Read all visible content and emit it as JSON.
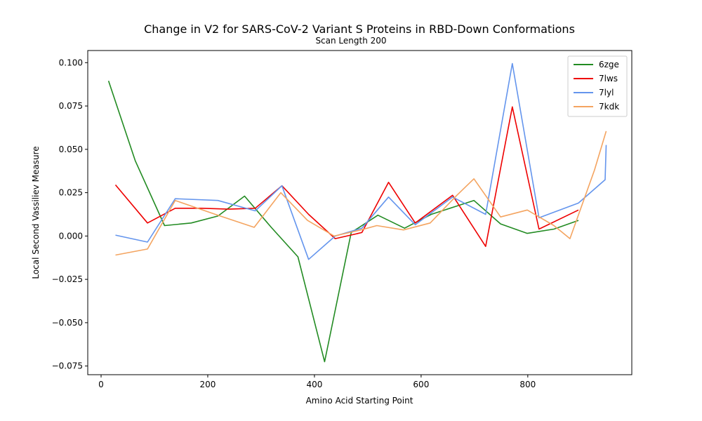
{
  "chart_data": {
    "type": "line",
    "title": "Change in V2 for SARS-CoV-2 Variant S Proteins in RBD-Down Conformations",
    "subtitle": "Scan Length 200",
    "xlabel": "Amino Acid Starting Point",
    "ylabel": "Local Second Vassiliev Measure",
    "xlim": [
      -25,
      995
    ],
    "ylim": [
      -0.08,
      0.107
    ],
    "xticks": [
      0,
      200,
      400,
      600,
      800
    ],
    "xtick_labels": [
      "0",
      "200",
      "400",
      "600",
      "800"
    ],
    "yticks": [
      -0.075,
      -0.05,
      -0.025,
      0.0,
      0.025,
      0.05,
      0.075,
      0.1
    ],
    "ytick_labels": [
      "−0.075",
      "−0.050",
      "−0.025",
      "0.000",
      "0.025",
      "0.050",
      "0.075",
      "0.100"
    ],
    "grid": false,
    "legend_position": "top-right",
    "series": [
      {
        "name": "6zge",
        "color": "#228b22",
        "x": [
          14,
          64,
          119,
          169,
          219,
          269,
          319,
          369,
          419,
          469,
          519,
          569,
          619,
          669,
          699,
          749,
          799,
          849,
          895
        ],
        "y": [
          0.0895,
          0.0435,
          0.006,
          0.0075,
          0.0115,
          0.023,
          0.005,
          -0.012,
          -0.0725,
          0.002,
          0.012,
          0.0045,
          0.0125,
          0.0175,
          0.0205,
          0.007,
          0.0015,
          0.004,
          0.009
        ]
      },
      {
        "name": "7lws",
        "color": "#ee0000",
        "x": [
          27,
          87,
          139,
          189,
          239,
          289,
          339,
          389,
          439,
          489,
          539,
          589,
          659,
          721,
          771,
          821,
          895
        ],
        "y": [
          0.0295,
          0.0075,
          0.016,
          0.016,
          0.0155,
          0.016,
          0.029,
          0.0125,
          -0.0015,
          0.002,
          0.031,
          0.0075,
          0.0235,
          -0.006,
          0.0745,
          0.004,
          0.015
        ]
      },
      {
        "name": "7lyl",
        "color": "#6495ed",
        "x": [
          27,
          87,
          139,
          219,
          289,
          339,
          389,
          439,
          489,
          539,
          589,
          659,
          721,
          771,
          821,
          895,
          945,
          947
        ],
        "y": [
          0.0005,
          -0.0035,
          0.0215,
          0.0205,
          0.0145,
          0.029,
          -0.0135,
          0.0,
          0.0045,
          0.0225,
          0.0065,
          0.0225,
          0.0125,
          0.0995,
          0.0105,
          0.019,
          0.0325,
          0.0525
        ]
      },
      {
        "name": "7kdk",
        "color": "#f4a460",
        "x": [
          27,
          87,
          139,
          219,
          287,
          337,
          387,
          437,
          487,
          517,
          567,
          617,
          667,
          699,
          749,
          799,
          849,
          879,
          925,
          947
        ],
        "y": [
          -0.011,
          -0.0075,
          0.0205,
          0.012,
          0.005,
          0.025,
          0.009,
          0.0,
          0.0035,
          0.006,
          0.0035,
          0.0075,
          0.0235,
          0.033,
          0.011,
          0.015,
          0.006,
          -0.0015,
          0.038,
          0.0605
        ]
      }
    ]
  }
}
